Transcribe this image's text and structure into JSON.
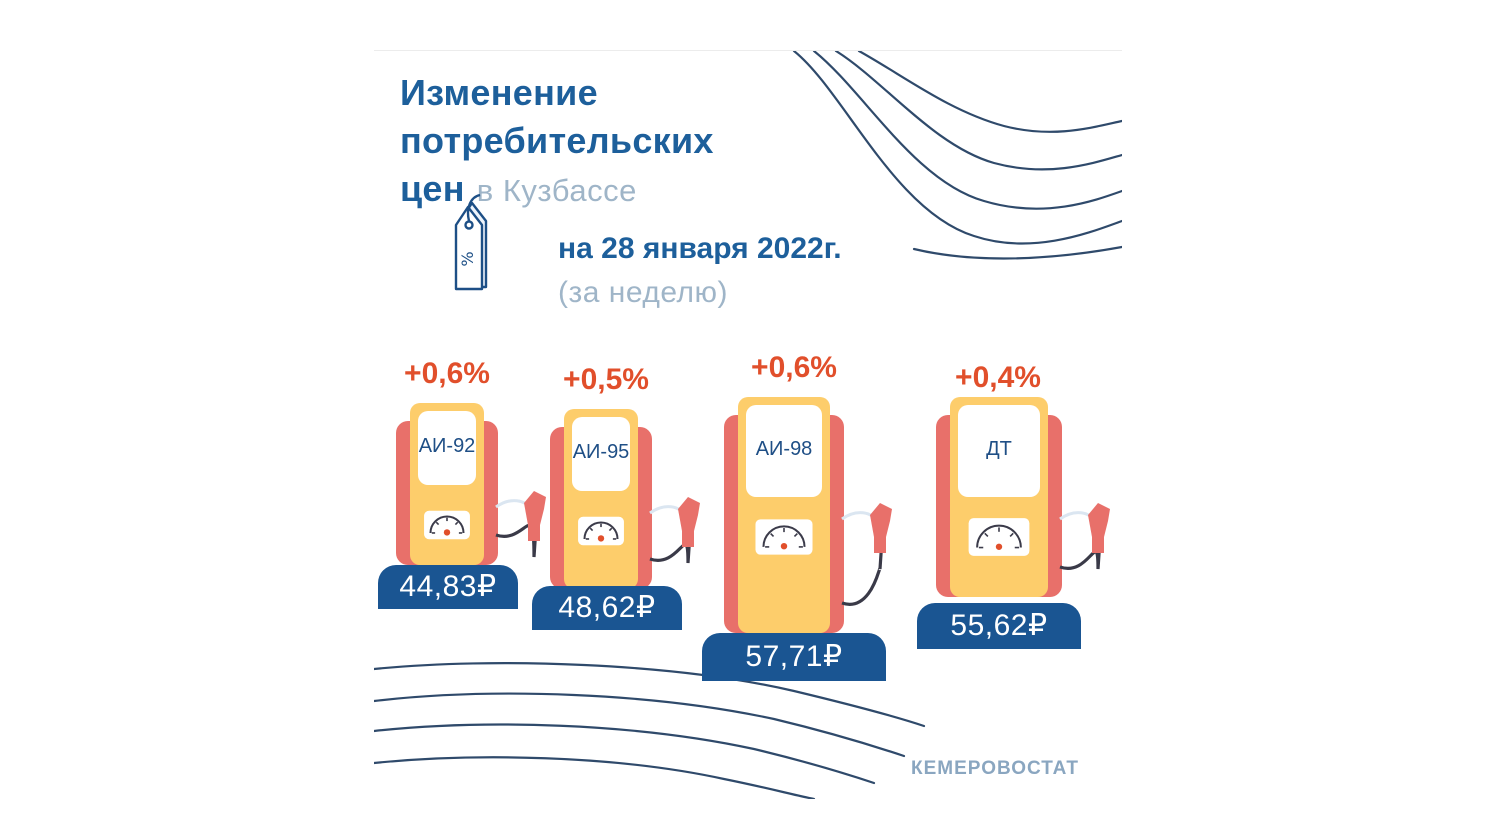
{
  "title": {
    "line1": "Изменение",
    "line2": "потребительских",
    "line3_bold": "цен",
    "line3_light": "в Кузбассе"
  },
  "date": {
    "main": "на 28 января 2022г.",
    "sub": "(за неделю)"
  },
  "tag_icon": {
    "icon": "price-tag-icon",
    "symbol": "%"
  },
  "pumps": [
    {
      "fuel": "АИ-92",
      "change": "+0,6%",
      "price": "44,83₽"
    },
    {
      "fuel": "АИ-95",
      "change": "+0,5%",
      "price": "48,62₽"
    },
    {
      "fuel": "АИ-98",
      "change": "+0,6%",
      "price": "57,71₽"
    },
    {
      "fuel": "ДТ",
      "change": "+0,4%",
      "price": "55,62₽"
    }
  ],
  "brand": "КЕМЕРОВОСТАТ",
  "colors": {
    "title": "#1d5f9b",
    "accent_light": "#9fb5c8",
    "change": "#e14f2b",
    "pump_body": "#e8706a",
    "pump_panel": "#fdcd6b",
    "price_bg": "#1a5592",
    "wave": "#2f4a6b"
  }
}
